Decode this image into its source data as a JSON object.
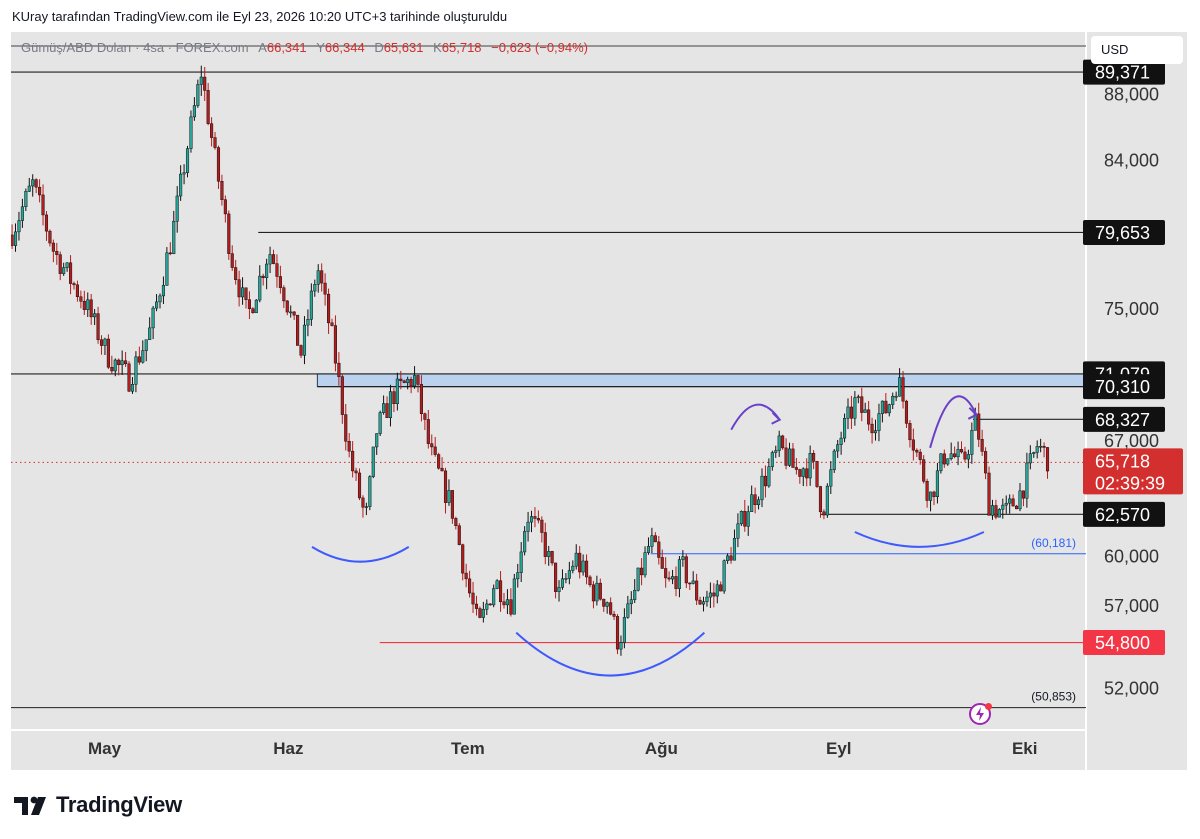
{
  "caption": "KUray tarafından TradingView.com ile Eyl 23, 2026 10:20 UTC+3 tarihinde oluşturuldu",
  "symbol": {
    "name": "Gümüş/ABD Doları · 4sa · FOREX.com",
    "open_label": "A",
    "open": "66,341",
    "high_label": "Y",
    "high": "66,344",
    "low_label": "D",
    "low": "65,631",
    "close_label": "K",
    "close": "65,718",
    "change": "−0,623 (−0,94%)"
  },
  "currency": "USD",
  "branding": "TradingView",
  "colors": {
    "bull": "#26a69a",
    "bear": "#b71c1c",
    "candle": "#1c1c1c",
    "support_red": "#f23645",
    "blue_line": "#2962ff",
    "arc_blue": "#3d5afe",
    "arrow_purple": "#6a3fc9",
    "zone_fill": "#bbd2ee",
    "current_price": "#d32f2f"
  },
  "chart_data": {
    "type": "candlestick",
    "ylim": [
      49500,
      91800
    ],
    "x_ticks": [
      "May",
      "Haz",
      "Tem",
      "Ağu",
      "Eyl",
      "Eki"
    ],
    "y_ticks": [
      {
        "value": 52000,
        "label": "52,000"
      },
      {
        "value": 57000,
        "label": "57,000"
      },
      {
        "value": 60000,
        "label": "60,000"
      },
      {
        "value": 67000,
        "label": "67,000"
      },
      {
        "value": 75000,
        "label": "75,000"
      },
      {
        "value": 84000,
        "label": "84,000"
      },
      {
        "value": 88000,
        "label": "88,000"
      }
    ],
    "price_path": [
      {
        "x": 0,
        "v": 79500
      },
      {
        "x": 2,
        "v": 82600
      },
      {
        "x": 4,
        "v": 78500
      },
      {
        "x": 7,
        "v": 75200
      },
      {
        "x": 9,
        "v": 72200
      },
      {
        "x": 11,
        "v": 70800
      },
      {
        "x": 13,
        "v": 73800
      },
      {
        "x": 15,
        "v": 79500
      },
      {
        "x": 16.5,
        "v": 85200
      },
      {
        "x": 17.7,
        "v": 89371
      },
      {
        "x": 19,
        "v": 84000
      },
      {
        "x": 20.5,
        "v": 78200
      },
      {
        "x": 22,
        "v": 74500
      },
      {
        "x": 24,
        "v": 78600
      },
      {
        "x": 25,
        "v": 77000
      },
      {
        "x": 27,
        "v": 72300
      },
      {
        "x": 28.5,
        "v": 77600
      },
      {
        "x": 30,
        "v": 72800
      },
      {
        "x": 31.5,
        "v": 66000
      },
      {
        "x": 33,
        "v": 62200
      },
      {
        "x": 34,
        "v": 67600
      },
      {
        "x": 35.5,
        "v": 69800
      },
      {
        "x": 37.5,
        "v": 70900
      },
      {
        "x": 39,
        "v": 66300
      },
      {
        "x": 41,
        "v": 63000
      },
      {
        "x": 42.5,
        "v": 58200
      },
      {
        "x": 43.5,
        "v": 55600
      },
      {
        "x": 45,
        "v": 58500
      },
      {
        "x": 46.5,
        "v": 57300
      },
      {
        "x": 48,
        "v": 62600
      },
      {
        "x": 49.5,
        "v": 61000
      },
      {
        "x": 51,
        "v": 57600
      },
      {
        "x": 52.5,
        "v": 60000
      },
      {
        "x": 54,
        "v": 58000
      },
      {
        "x": 55.5,
        "v": 57400
      },
      {
        "x": 56.5,
        "v": 54800
      },
      {
        "x": 58,
        "v": 57800
      },
      {
        "x": 59.5,
        "v": 61000
      },
      {
        "x": 61,
        "v": 58200
      },
      {
        "x": 62.5,
        "v": 59300
      },
      {
        "x": 64,
        "v": 57400
      },
      {
        "x": 65.5,
        "v": 57700
      },
      {
        "x": 67,
        "v": 60400
      },
      {
        "x": 68.5,
        "v": 63000
      },
      {
        "x": 70,
        "v": 64600
      },
      {
        "x": 71.5,
        "v": 66600
      },
      {
        "x": 73,
        "v": 65200
      },
      {
        "x": 74.5,
        "v": 65700
      },
      {
        "x": 75.5,
        "v": 62800
      },
      {
        "x": 77,
        "v": 67000
      },
      {
        "x": 78.5,
        "v": 69300
      },
      {
        "x": 80,
        "v": 68200
      },
      {
        "x": 81.5,
        "v": 69000
      },
      {
        "x": 82.5,
        "v": 70800
      },
      {
        "x": 84,
        "v": 66800
      },
      {
        "x": 85.5,
        "v": 63600
      },
      {
        "x": 87,
        "v": 66500
      },
      {
        "x": 88.5,
        "v": 65600
      },
      {
        "x": 89.8,
        "v": 68300
      },
      {
        "x": 91,
        "v": 63200
      },
      {
        "x": 92.5,
        "v": 62600
      },
      {
        "x": 94,
        "v": 64000
      },
      {
        "x": 95.5,
        "v": 66800
      },
      {
        "x": 96.7,
        "v": 65718
      }
    ],
    "horizontal_levels": [
      {
        "value": 89371,
        "label": "89,371",
        "from": 0,
        "kind": "black"
      },
      {
        "value": 79653,
        "label": "79,653",
        "from": 23,
        "kind": "black"
      },
      {
        "value": 71079,
        "label": "71,079",
        "from": 0,
        "kind": "black"
      },
      {
        "value": 70310,
        "label": "70,310",
        "from": 28.5,
        "kind": "black"
      },
      {
        "value": 68327,
        "label": "68,327",
        "from": 89.5,
        "kind": "black"
      },
      {
        "value": 62570,
        "label": "62,570",
        "from": 75.3,
        "kind": "black"
      },
      {
        "value": 54800,
        "label": "54,800",
        "from": 34.3,
        "kind": "red"
      }
    ],
    "blue_levels": [
      {
        "value": 60181,
        "label": "(60,181)",
        "from": 59.5
      },
      {
        "value": 50853,
        "label": "(50,853)",
        "from": 0
      }
    ],
    "zone": {
      "from": 28.5,
      "to": 106,
      "top": 71079,
      "bottom": 70310
    },
    "current_price": {
      "value": 65718,
      "label": "65,718",
      "countdown": "02:39:39"
    },
    "arcs": [
      {
        "x1": 28,
        "x2": 37,
        "v_end": 60600,
        "v_mid": 59700
      },
      {
        "x1": 47,
        "x2": 64.5,
        "v_end": 55400,
        "v_mid": 52800
      },
      {
        "x1": 78.5,
        "x2": 90.5,
        "v_end": 61500,
        "v_mid": 60600
      }
    ],
    "arrows": [
      {
        "x1": 67,
        "x2": 71.5,
        "v1": 67700,
        "v_mid": 69200,
        "v2": 68300
      },
      {
        "x1": 85.5,
        "x2": 89.8,
        "v1": 66600,
        "v_mid": 69600,
        "v2": 68600
      }
    ]
  }
}
